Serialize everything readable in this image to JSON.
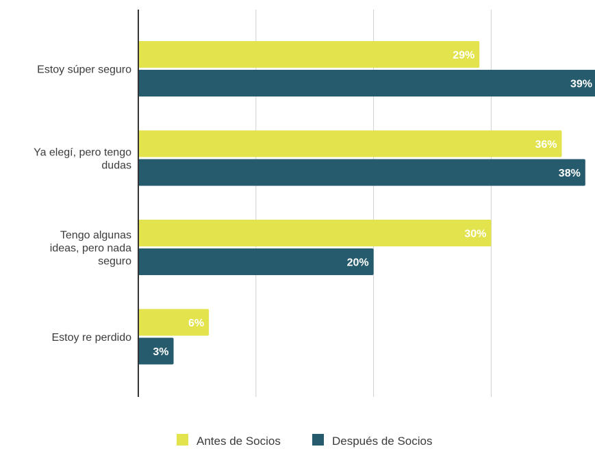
{
  "chart_data": {
    "type": "bar",
    "orientation": "horizontal",
    "categories": [
      "Estoy súper seguro",
      "Ya elegí, pero tengo dudas",
      "Tengo algunas ideas, pero nada seguro",
      "Estoy re perdido"
    ],
    "category_lines": [
      [
        "Estoy súper seguro"
      ],
      [
        "Ya elegí, pero tengo",
        "dudas"
      ],
      [
        "Tengo algunas",
        "ideas, pero nada",
        "seguro"
      ],
      [
        "Estoy re perdido"
      ]
    ],
    "series": [
      {
        "name": "Antes de Socios",
        "color": "#e2e34d",
        "values": [
          29,
          36,
          30,
          6
        ],
        "labels": [
          "29%",
          "36%",
          "30%",
          "6%"
        ]
      },
      {
        "name": "Después de Socios",
        "color": "#255b6c",
        "values": [
          39,
          38,
          20,
          3
        ],
        "labels": [
          "39%",
          "38%",
          "20%",
          "3%"
        ]
      }
    ],
    "xlim": [
      0,
      40
    ],
    "x_gridlines": [
      10,
      20,
      30
    ],
    "grid": true,
    "axis_tick_labels_shown": false,
    "legend_position": "bottom",
    "title": "",
    "xlabel": "",
    "ylabel": ""
  }
}
